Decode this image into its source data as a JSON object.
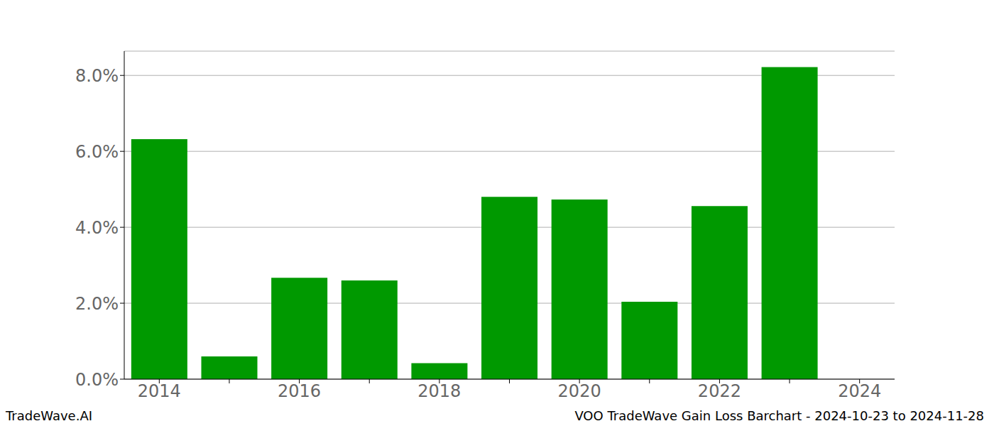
{
  "chart_data": {
    "type": "bar",
    "categories": [
      "2014",
      null,
      "2016",
      null,
      "2018",
      null,
      "2020",
      null,
      "2022",
      null,
      "2024"
    ],
    "values": [
      6.32,
      0.6,
      2.67,
      2.6,
      0.42,
      4.8,
      4.73,
      2.04,
      4.56,
      8.22,
      null
    ],
    "color": "#009900",
    "ylim": [
      0,
      8.64
    ],
    "yticks": [
      {
        "value": 0,
        "label": "0.0%"
      },
      {
        "value": 2,
        "label": "2.0%"
      },
      {
        "value": 4,
        "label": "4.0%"
      },
      {
        "value": 6,
        "label": "6.0%"
      },
      {
        "value": 8,
        "label": "8.0%"
      }
    ],
    "grid": true,
    "annotations": [
      "TradeWave.AI",
      "VOO TradeWave Gain Loss Barchart - 2024-10-23 to 2024-11-28"
    ]
  }
}
